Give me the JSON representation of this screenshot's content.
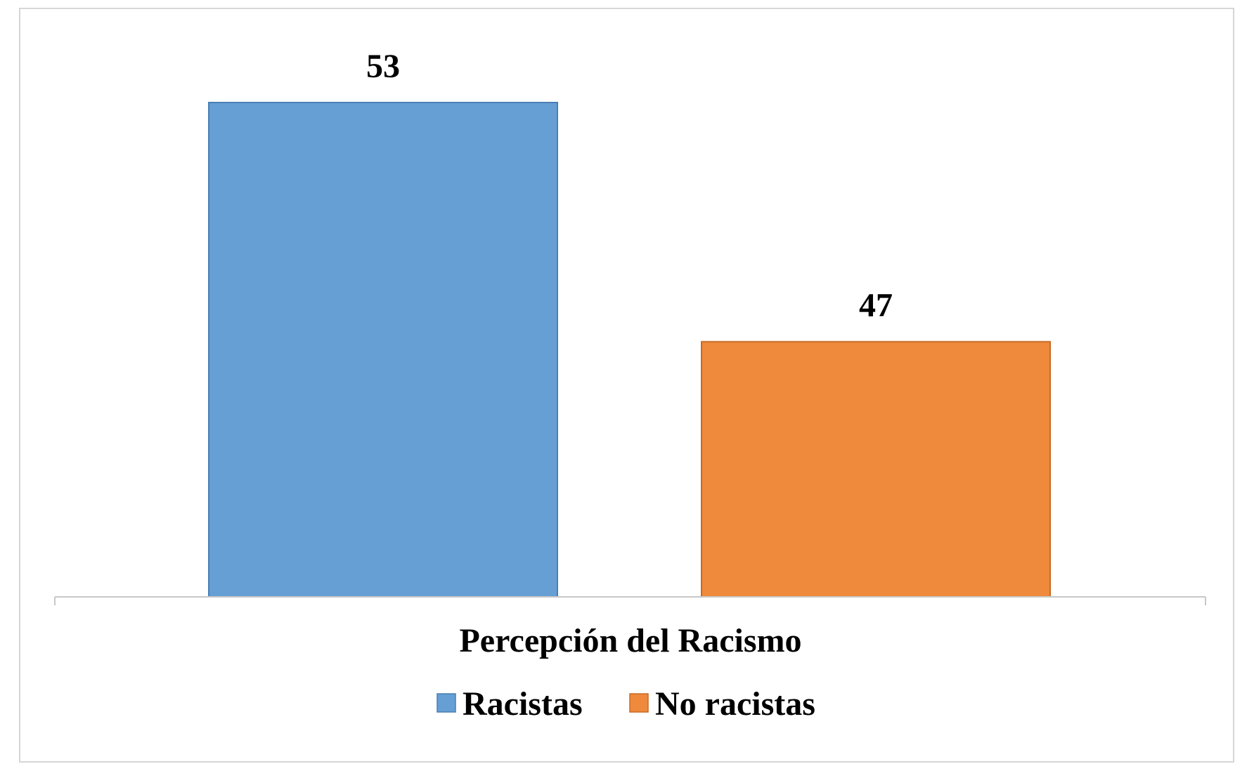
{
  "chart_data": {
    "type": "bar",
    "categories": [
      "Percepción del Racismo"
    ],
    "series": [
      {
        "name": "Racistas",
        "values": [
          53
        ],
        "color": "#659fd4",
        "stroke": "#4a7fb4"
      },
      {
        "name": "No racistas",
        "values": [
          47
        ],
        "color": "#ef8a3c",
        "stroke": "#c96a24"
      }
    ],
    "title": "",
    "xlabel": "Percepción del Racismo",
    "ylabel": "",
    "ylim": [
      40.6,
      53
    ],
    "data_labels": [
      "53",
      "47"
    ],
    "grid": false,
    "legend_position": "bottom",
    "axis_color": "#c8c8c8"
  }
}
